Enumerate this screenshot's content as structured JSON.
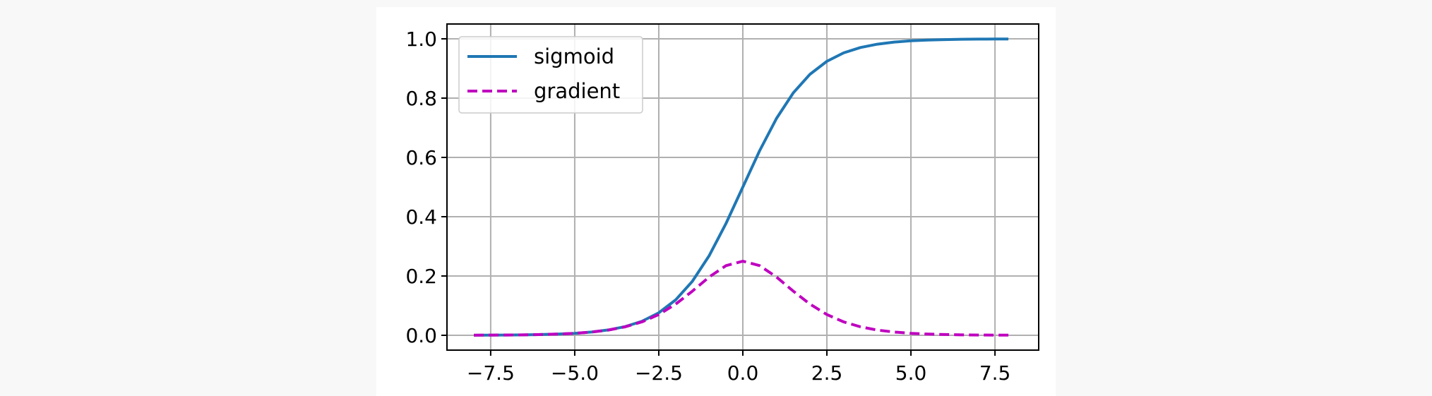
{
  "chart_data": {
    "type": "line",
    "title": "",
    "xlabel": "",
    "ylabel": "",
    "xlim": [
      -8.8,
      8.8
    ],
    "ylim": [
      -0.05,
      1.05
    ],
    "grid": true,
    "legend_position": "upper-left",
    "x_ticks": [
      -7.5,
      -5.0,
      -2.5,
      0.0,
      2.5,
      5.0,
      7.5
    ],
    "x_tick_labels": [
      "−7.5",
      "−5.0",
      "−2.5",
      "0.0",
      "2.5",
      "5.0",
      "7.5"
    ],
    "y_ticks": [
      0.0,
      0.2,
      0.4,
      0.6,
      0.8,
      1.0
    ],
    "y_tick_labels": [
      "0.0",
      "0.2",
      "0.4",
      "0.6",
      "0.8",
      "1.0"
    ],
    "x": [
      -8.0,
      -7.5,
      -7.0,
      -6.5,
      -6.0,
      -5.5,
      -5.0,
      -4.5,
      -4.0,
      -3.5,
      -3.0,
      -2.5,
      -2.0,
      -1.5,
      -1.0,
      -0.5,
      0.0,
      0.5,
      1.0,
      1.5,
      2.0,
      2.5,
      3.0,
      3.5,
      4.0,
      4.5,
      5.0,
      5.5,
      6.0,
      6.5,
      7.0,
      7.5,
      7.9
    ],
    "series": [
      {
        "name": "sigmoid",
        "color": "#1f77b4",
        "style": "solid",
        "values": [
          0.0003,
          0.0006,
          0.0009,
          0.0015,
          0.0025,
          0.0041,
          0.0067,
          0.011,
          0.018,
          0.0293,
          0.0474,
          0.0759,
          0.1192,
          0.1824,
          0.2689,
          0.3775,
          0.5,
          0.6225,
          0.7311,
          0.8176,
          0.8808,
          0.9241,
          0.9526,
          0.9707,
          0.982,
          0.989,
          0.9933,
          0.9959,
          0.9975,
          0.9985,
          0.9991,
          0.9994,
          0.9996
        ]
      },
      {
        "name": "gradient",
        "color": "#bf00bf",
        "style": "dashed",
        "values": [
          0.0003,
          0.0006,
          0.0009,
          0.0015,
          0.0025,
          0.0041,
          0.0066,
          0.0109,
          0.0177,
          0.0285,
          0.0452,
          0.0701,
          0.105,
          0.1491,
          0.1966,
          0.235,
          0.25,
          0.235,
          0.1966,
          0.1491,
          0.105,
          0.0701,
          0.0452,
          0.0285,
          0.0177,
          0.0109,
          0.0066,
          0.0041,
          0.0025,
          0.0015,
          0.0009,
          0.0006,
          0.0004
        ]
      }
    ]
  }
}
